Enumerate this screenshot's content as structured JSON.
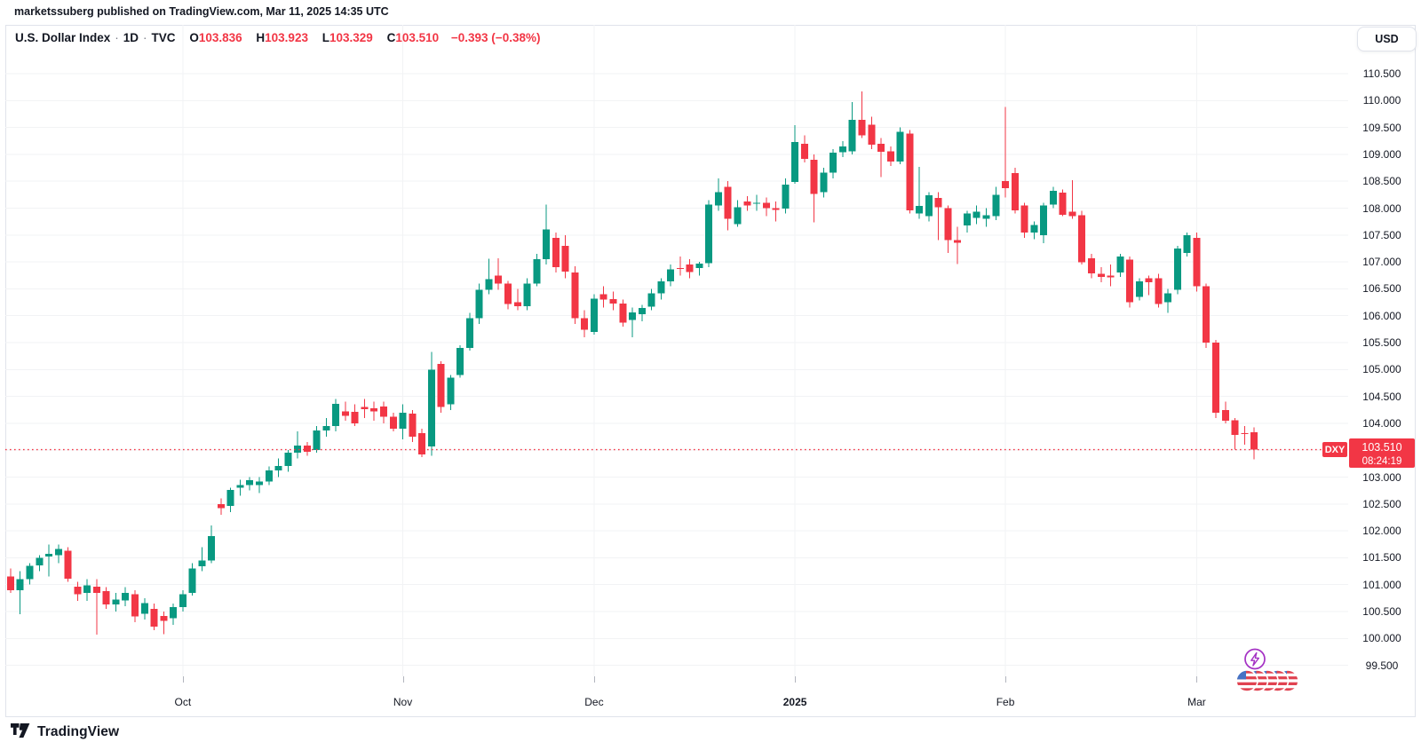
{
  "header": {
    "attribution": "marketssuberg published on TradingView.com, Mar 11, 2025 14:35 UTC"
  },
  "legend": {
    "title": "U.S. Dollar Index",
    "separator": "·",
    "interval": "1D",
    "exchange": "TVC",
    "open_label": "O",
    "open": "103.836",
    "high_label": "H",
    "high": "103.923",
    "low_label": "L",
    "low": "103.329",
    "close_label": "C",
    "close": "103.510",
    "change": "−0.393 (−0.38%)"
  },
  "toolbar": {
    "currency": "USD"
  },
  "price_axis": {
    "labels": [
      "110.500",
      "110.000",
      "109.500",
      "109.000",
      "108.500",
      "108.000",
      "107.500",
      "107.000",
      "106.500",
      "106.000",
      "105.500",
      "105.000",
      "104.500",
      "104.000",
      "103.500",
      "103.000",
      "102.500",
      "102.000",
      "101.500",
      "101.000",
      "100.500",
      "100.000",
      "99.500"
    ],
    "tag": {
      "symbol": "DXY",
      "price": "103.510",
      "countdown": "08:24:19"
    }
  },
  "time_axis": {
    "labels": [
      {
        "text": "Oct",
        "candle_index": 19,
        "bold": false
      },
      {
        "text": "Nov",
        "candle_index": 42,
        "bold": false
      },
      {
        "text": "Dec",
        "candle_index": 62,
        "bold": false
      },
      {
        "text": "2025",
        "candle_index": 83,
        "bold": true
      },
      {
        "text": "Feb",
        "candle_index": 105,
        "bold": false
      },
      {
        "text": "Mar",
        "candle_index": 125,
        "bold": false
      }
    ]
  },
  "footer": {
    "brand": "TradingView"
  },
  "reactions": {
    "lightning_count": 1,
    "us_flag_count": 5
  },
  "colors": {
    "up": "#089981",
    "down": "#f23645",
    "accent_red": "#f23645",
    "text": "#131722",
    "muted_text": "#787b86",
    "grid": "#f2f3f5",
    "border": "#e0e3eb",
    "tick": "#b2b5be",
    "purple": "#a431c4",
    "flag_red": "#e04250",
    "flag_blue": "#4672c4"
  },
  "chart_data": {
    "type": "candlestick",
    "symbol": "DXY",
    "title": "U.S. Dollar Index",
    "interval": "1D",
    "exchange": "TVC",
    "last_price": 103.51,
    "change": -0.393,
    "change_pct": -0.38,
    "grid": true,
    "y_axis": {
      "min": 99.5,
      "max": 110.5,
      "step": 0.5
    },
    "x_axis_months": [
      "Oct",
      "Nov",
      "Dec",
      "2025",
      "Feb",
      "Mar"
    ],
    "candles": [
      [
        "2024-09-04",
        101.12,
        101.25,
        100.9,
        100.95
      ],
      [
        "2024-09-05",
        101.15,
        101.3,
        100.85,
        100.9
      ],
      [
        "2024-09-06",
        100.9,
        101.25,
        100.45,
        101.1
      ],
      [
        "2024-09-09",
        101.1,
        101.4,
        101.0,
        101.35
      ],
      [
        "2024-09-10",
        101.36,
        101.55,
        101.25,
        101.5
      ],
      [
        "2024-09-11",
        101.52,
        101.75,
        101.15,
        101.57
      ],
      [
        "2024-09-12",
        101.55,
        101.75,
        101.4,
        101.66
      ],
      [
        "2024-09-13",
        101.63,
        101.7,
        101.05,
        101.11
      ],
      [
        "2024-09-16",
        100.96,
        101.05,
        100.7,
        100.82
      ],
      [
        "2024-09-17",
        100.85,
        101.1,
        100.7,
        100.99
      ],
      [
        "2024-09-18",
        100.96,
        101.1,
        100.07,
        100.85
      ],
      [
        "2024-09-19",
        100.88,
        100.95,
        100.55,
        100.63
      ],
      [
        "2024-09-20",
        100.63,
        100.85,
        100.5,
        100.72
      ],
      [
        "2024-09-23",
        100.71,
        100.95,
        100.6,
        100.85
      ],
      [
        "2024-09-24",
        100.82,
        100.9,
        100.3,
        100.41
      ],
      [
        "2024-09-25",
        100.46,
        100.75,
        100.35,
        100.66
      ],
      [
        "2024-09-26",
        100.55,
        100.65,
        100.15,
        100.22
      ],
      [
        "2024-09-27",
        100.42,
        100.5,
        100.08,
        100.33
      ],
      [
        "2024-09-30",
        100.38,
        100.65,
        100.25,
        100.58
      ],
      [
        "2024-10-01",
        100.58,
        100.9,
        100.5,
        100.82
      ],
      [
        "2024-10-02",
        100.85,
        101.4,
        100.8,
        101.3
      ],
      [
        "2024-10-03",
        101.34,
        101.7,
        101.25,
        101.45
      ],
      [
        "2024-10-04",
        101.45,
        102.1,
        101.4,
        101.9
      ],
      [
        "2024-10-07",
        102.5,
        102.6,
        102.3,
        102.42
      ],
      [
        "2024-10-08",
        102.46,
        102.8,
        102.35,
        102.76
      ],
      [
        "2024-10-09",
        102.8,
        102.95,
        102.65,
        102.85
      ],
      [
        "2024-10-10",
        102.85,
        103.0,
        102.75,
        102.94
      ],
      [
        "2024-10-11",
        102.85,
        103.0,
        102.7,
        102.92
      ],
      [
        "2024-10-14",
        102.92,
        103.2,
        102.85,
        103.12
      ],
      [
        "2024-10-15",
        103.12,
        103.35,
        103.0,
        103.21
      ],
      [
        "2024-10-16",
        103.21,
        103.5,
        103.1,
        103.45
      ],
      [
        "2024-10-17",
        103.45,
        103.85,
        103.35,
        103.59
      ],
      [
        "2024-10-18",
        103.59,
        103.65,
        103.4,
        103.47
      ],
      [
        "2024-10-21",
        103.5,
        103.95,
        103.45,
        103.87
      ],
      [
        "2024-10-22",
        103.87,
        104.1,
        103.75,
        103.95
      ],
      [
        "2024-10-23",
        103.95,
        104.45,
        103.85,
        104.36
      ],
      [
        "2024-10-24",
        104.22,
        104.4,
        104.05,
        104.14
      ],
      [
        "2024-10-25",
        104.21,
        104.35,
        103.95,
        104.0
      ],
      [
        "2024-10-28",
        104.3,
        104.45,
        104.1,
        104.26
      ],
      [
        "2024-10-29",
        104.28,
        104.4,
        104.05,
        104.22
      ],
      [
        "2024-10-30",
        104.31,
        104.4,
        104.0,
        104.12
      ],
      [
        "2024-10-31",
        104.12,
        104.2,
        103.85,
        103.9
      ],
      [
        "2024-11-01",
        103.9,
        104.35,
        103.7,
        104.2
      ],
      [
        "2024-11-04",
        104.18,
        104.25,
        103.65,
        103.75
      ],
      [
        "2024-11-05",
        103.82,
        103.9,
        103.37,
        103.42
      ],
      [
        "2024-11-06",
        103.57,
        105.33,
        103.4,
        105.0
      ],
      [
        "2024-11-07",
        105.1,
        105.15,
        104.2,
        104.3
      ],
      [
        "2024-11-08",
        104.35,
        104.9,
        104.25,
        104.85
      ],
      [
        "2024-11-11",
        104.9,
        105.45,
        104.85,
        105.4
      ],
      [
        "2024-11-12",
        105.4,
        106.05,
        105.35,
        105.95
      ],
      [
        "2024-11-13",
        105.95,
        106.6,
        105.85,
        106.48
      ],
      [
        "2024-11-14",
        106.48,
        107.06,
        106.4,
        106.68
      ],
      [
        "2024-11-15",
        106.75,
        107.07,
        106.48,
        106.6
      ],
      [
        "2024-11-18",
        106.6,
        106.65,
        106.12,
        106.22
      ],
      [
        "2024-11-19",
        106.25,
        106.5,
        106.1,
        106.18
      ],
      [
        "2024-11-20",
        106.18,
        106.7,
        106.1,
        106.6
      ],
      [
        "2024-11-21",
        106.6,
        107.15,
        106.55,
        107.05
      ],
      [
        "2024-11-22",
        107.05,
        108.07,
        106.95,
        107.6
      ],
      [
        "2024-11-25",
        107.45,
        107.55,
        106.8,
        106.9
      ],
      [
        "2024-11-26",
        107.3,
        107.5,
        106.7,
        106.82
      ],
      [
        "2024-11-27",
        106.8,
        106.92,
        105.85,
        105.95
      ],
      [
        "2024-11-29",
        105.95,
        106.1,
        105.6,
        105.74
      ],
      [
        "2024-12-02",
        105.7,
        106.4,
        105.65,
        106.32
      ],
      [
        "2024-12-03",
        106.4,
        106.55,
        106.15,
        106.3
      ],
      [
        "2024-12-04",
        106.31,
        106.45,
        106.1,
        106.23
      ],
      [
        "2024-12-05",
        106.23,
        106.3,
        105.8,
        105.87
      ],
      [
        "2024-12-06",
        105.92,
        106.15,
        105.6,
        106.06
      ],
      [
        "2024-12-09",
        106.03,
        106.2,
        105.9,
        106.14
      ],
      [
        "2024-12-10",
        106.17,
        106.5,
        106.1,
        106.42
      ],
      [
        "2024-12-11",
        106.42,
        106.7,
        106.3,
        106.64
      ],
      [
        "2024-12-12",
        106.64,
        106.95,
        106.55,
        106.86
      ],
      [
        "2024-12-13",
        106.89,
        107.1,
        106.75,
        106.87
      ],
      [
        "2024-12-16",
        106.95,
        107.05,
        106.7,
        106.81
      ],
      [
        "2024-12-17",
        106.89,
        107.0,
        106.75,
        106.97
      ],
      [
        "2024-12-18",
        106.98,
        108.15,
        106.9,
        108.07
      ],
      [
        "2024-12-19",
        108.05,
        108.55,
        107.95,
        108.3
      ],
      [
        "2024-12-20",
        108.4,
        108.5,
        107.59,
        107.8
      ],
      [
        "2024-12-23",
        107.7,
        108.15,
        107.65,
        108.02
      ],
      [
        "2024-12-24",
        108.12,
        108.22,
        107.95,
        108.05
      ],
      [
        "2024-12-26",
        108.08,
        108.25,
        107.95,
        108.1
      ],
      [
        "2024-12-27",
        108.1,
        108.2,
        107.85,
        108.0
      ],
      [
        "2024-12-30",
        108.0,
        108.12,
        107.75,
        107.97
      ],
      [
        "2024-12-31",
        107.99,
        108.55,
        107.9,
        108.44
      ],
      [
        "2025-01-02",
        108.49,
        109.54,
        108.45,
        109.23
      ],
      [
        "2025-01-03",
        109.2,
        109.35,
        108.85,
        108.92
      ],
      [
        "2025-01-06",
        108.9,
        109.0,
        107.74,
        108.26
      ],
      [
        "2025-01-07",
        108.3,
        108.75,
        108.2,
        108.66
      ],
      [
        "2025-01-08",
        108.66,
        109.1,
        108.55,
        109.03
      ],
      [
        "2025-01-09",
        109.04,
        109.25,
        108.95,
        109.15
      ],
      [
        "2025-01-10",
        109.06,
        109.97,
        109.0,
        109.64
      ],
      [
        "2025-01-13",
        109.64,
        110.17,
        109.3,
        109.35
      ],
      [
        "2025-01-14",
        109.55,
        109.7,
        109.1,
        109.18
      ],
      [
        "2025-01-15",
        109.2,
        109.3,
        108.58,
        109.05
      ],
      [
        "2025-01-16",
        109.06,
        109.15,
        108.78,
        108.87
      ],
      [
        "2025-01-17",
        108.87,
        109.5,
        108.82,
        109.42
      ],
      [
        "2025-01-20",
        109.39,
        109.45,
        107.9,
        107.96
      ],
      [
        "2025-01-21",
        107.9,
        108.77,
        107.8,
        108.04
      ],
      [
        "2025-01-22",
        107.85,
        108.3,
        107.75,
        108.24
      ],
      [
        "2025-01-23",
        108.19,
        108.3,
        107.41,
        108.02
      ],
      [
        "2025-01-24",
        108.0,
        108.05,
        107.17,
        107.41
      ],
      [
        "2025-01-27",
        107.41,
        107.65,
        106.96,
        107.36
      ],
      [
        "2025-01-28",
        107.68,
        107.95,
        107.55,
        107.9
      ],
      [
        "2025-01-29",
        107.82,
        108.05,
        107.7,
        107.93
      ],
      [
        "2025-01-30",
        107.8,
        108.0,
        107.65,
        107.87
      ],
      [
        "2025-01-31",
        107.85,
        108.4,
        107.78,
        108.25
      ],
      [
        "2025-02-03",
        108.5,
        109.88,
        108.2,
        108.37
      ],
      [
        "2025-02-04",
        108.65,
        108.75,
        107.9,
        107.96
      ],
      [
        "2025-02-05",
        108.05,
        108.1,
        107.45,
        107.55
      ],
      [
        "2025-02-06",
        107.55,
        107.75,
        107.42,
        107.69
      ],
      [
        "2025-02-07",
        107.5,
        108.1,
        107.35,
        108.05
      ],
      [
        "2025-02-10",
        108.07,
        108.4,
        108.0,
        108.32
      ],
      [
        "2025-02-11",
        108.29,
        108.35,
        107.85,
        107.88
      ],
      [
        "2025-02-12",
        107.93,
        108.52,
        107.8,
        107.85
      ],
      [
        "2025-02-13",
        107.87,
        107.95,
        106.95,
        106.99
      ],
      [
        "2025-02-14",
        107.07,
        107.15,
        106.7,
        106.79
      ],
      [
        "2025-02-17",
        106.78,
        106.9,
        106.62,
        106.72
      ],
      [
        "2025-02-18",
        106.75,
        106.95,
        106.55,
        106.71
      ],
      [
        "2025-02-19",
        106.8,
        107.15,
        106.72,
        107.1
      ],
      [
        "2025-02-20",
        107.04,
        107.1,
        106.15,
        106.25
      ],
      [
        "2025-02-21",
        106.35,
        106.7,
        106.28,
        106.64
      ],
      [
        "2025-02-24",
        106.7,
        106.75,
        106.38,
        106.62
      ],
      [
        "2025-02-25",
        106.7,
        106.78,
        106.15,
        106.22
      ],
      [
        "2025-02-26",
        106.25,
        106.5,
        106.05,
        106.42
      ],
      [
        "2025-02-27",
        106.48,
        107.3,
        106.4,
        107.25
      ],
      [
        "2025-02-28",
        107.17,
        107.55,
        107.1,
        107.5
      ],
      [
        "2025-03-03",
        107.45,
        107.55,
        106.45,
        106.55
      ],
      [
        "2025-03-04",
        106.55,
        106.6,
        105.4,
        105.5
      ],
      [
        "2025-03-05",
        105.5,
        105.55,
        104.1,
        104.2
      ],
      [
        "2025-03-06",
        104.25,
        104.4,
        104.0,
        104.05
      ],
      [
        "2025-03-07",
        104.06,
        104.1,
        103.51,
        103.78
      ],
      [
        "2025-03-10",
        103.82,
        103.95,
        103.6,
        103.8
      ],
      [
        "2025-03-11",
        103.836,
        103.923,
        103.329,
        103.51
      ]
    ]
  }
}
